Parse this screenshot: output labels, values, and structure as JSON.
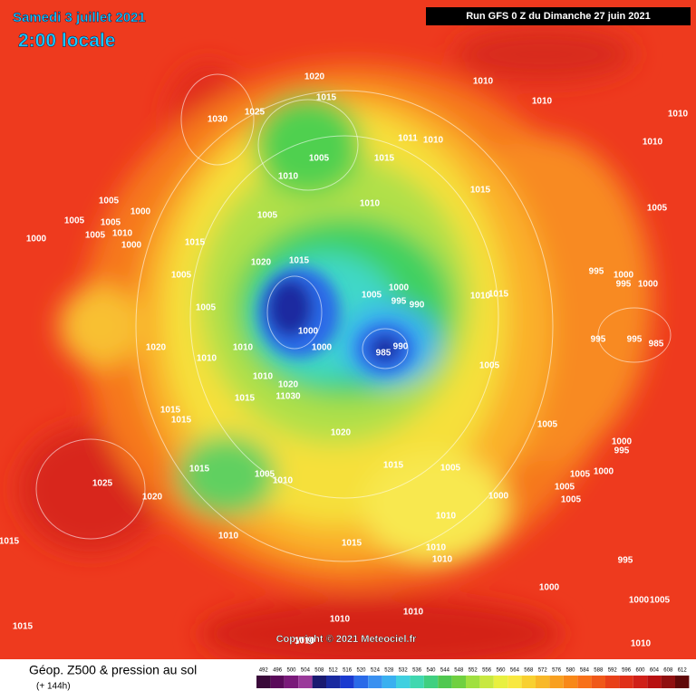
{
  "header": {
    "date": "Samedi 3 juillet 2021",
    "time": "2:00 locale",
    "run": "Run GFS 0 Z du Dimanche 27 juin 2021"
  },
  "map": {
    "copyright": "Copyright © 2021 Meteociel.fr",
    "isobar_labels": [
      "1020",
      "1015",
      "1010",
      "1030",
      "1025",
      "1010",
      "1010",
      "1010",
      "1011",
      "1010",
      "1005",
      "1015",
      "1010",
      "1015",
      "1005",
      "1005",
      "1000",
      "1005",
      "1010",
      "1005",
      "1000",
      "1000",
      "1015",
      "1005",
      "1010",
      "1005",
      "1020",
      "1015",
      "995",
      "1000",
      "995",
      "1000",
      "1005",
      "1000",
      "1005",
      "995",
      "990",
      "1010",
      "1015",
      "1005",
      "1000",
      "1000",
      "985",
      "990",
      "995",
      "995",
      "985",
      "1020",
      "1010",
      "1010",
      "1005",
      "1010",
      "1020",
      "1015",
      "11030",
      "1015",
      "1015",
      "1020",
      "1005",
      "1000",
      "995",
      "1015",
      "1015",
      "1005",
      "1005",
      "1010",
      "1005",
      "1000",
      "1005",
      "1005",
      "1000",
      "1025",
      "1020",
      "1010",
      "1010",
      "1015",
      "1015",
      "1010",
      "1010",
      "995",
      "1000",
      "1000",
      "1005",
      "1015",
      "1010",
      "1010",
      "1010",
      "1010"
    ]
  },
  "footer": {
    "title": "Géop. Z500 & pression au sol",
    "subtitle": "(+ 144h)"
  },
  "legend": {
    "ticks": [
      492,
      496,
      500,
      504,
      508,
      512,
      516,
      520,
      524,
      528,
      532,
      536,
      540,
      544,
      548,
      552,
      556,
      560,
      564,
      568,
      572,
      576,
      580,
      584,
      588,
      592,
      596,
      600,
      604,
      608,
      612
    ],
    "colors": [
      "#3a0a3a",
      "#5a0a5a",
      "#7a1a7a",
      "#9a3a9a",
      "#1a1a70",
      "#1a2aa0",
      "#1a3ad0",
      "#2a6ae8",
      "#3a90f0",
      "#3ab0f0",
      "#40d0e0",
      "#40d8b0",
      "#40d080",
      "#50c850",
      "#70d040",
      "#a0e040",
      "#c8e840",
      "#e8f040",
      "#f8e840",
      "#f8d030",
      "#f8b828",
      "#f8a020",
      "#f88818",
      "#f87018",
      "#f05818",
      "#e84018",
      "#e03018",
      "#d02018",
      "#b81010",
      "#901010",
      "#600808"
    ]
  }
}
